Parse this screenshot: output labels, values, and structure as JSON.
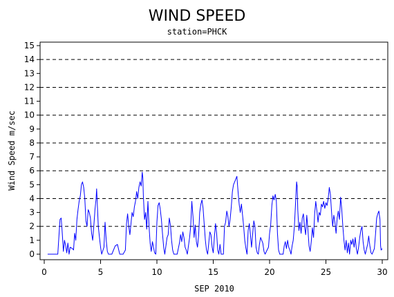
{
  "chart_data": {
    "type": "line",
    "title": "WIND SPEED",
    "subtitle": "station=PHCK",
    "xlabel": "SEP 2010",
    "ylabel": "Wind Speed m/sec",
    "xlim": [
      0,
      30.2
    ],
    "ylim": [
      0,
      15.5
    ],
    "x_ticks": [
      0,
      5,
      10,
      15,
      20,
      25,
      30
    ],
    "y_ticks": [
      0,
      1,
      2,
      3,
      4,
      5,
      6,
      7,
      8,
      9,
      10,
      11,
      12,
      13,
      14,
      15
    ],
    "reference_lines": [
      2,
      4,
      6,
      8,
      10,
      12,
      14
    ],
    "grid": false,
    "series": [
      {
        "color": "#0000ff",
        "points": [
          [
            0.3,
            0
          ],
          [
            0.8,
            0
          ],
          [
            1.2,
            0
          ],
          [
            1.4,
            2.5
          ],
          [
            1.5,
            2.6
          ],
          [
            1.6,
            1.5
          ],
          [
            1.7,
            0.2
          ],
          [
            1.8,
            1.0
          ],
          [
            1.9,
            0.6
          ],
          [
            2.0,
            0.1
          ],
          [
            2.1,
            0.8
          ],
          [
            2.2,
            0
          ],
          [
            2.3,
            0.5
          ],
          [
            2.5,
            0.4
          ],
          [
            2.6,
            0.3
          ],
          [
            2.7,
            1.5
          ],
          [
            2.8,
            1.0
          ],
          [
            2.9,
            2.5
          ],
          [
            3.0,
            3.2
          ],
          [
            3.1,
            3.8
          ],
          [
            3.2,
            4.2
          ],
          [
            3.3,
            5.0
          ],
          [
            3.4,
            5.2
          ],
          [
            3.5,
            4.8
          ],
          [
            3.6,
            4.0
          ],
          [
            3.7,
            2.4
          ],
          [
            3.8,
            2.0
          ],
          [
            3.9,
            3.2
          ],
          [
            4.0,
            3.0
          ],
          [
            4.1,
            2.6
          ],
          [
            4.2,
            1.5
          ],
          [
            4.3,
            1.0
          ],
          [
            4.4,
            2.0
          ],
          [
            4.5,
            3.2
          ],
          [
            4.6,
            4.0
          ],
          [
            4.65,
            4.7
          ],
          [
            4.7,
            3.8
          ],
          [
            4.8,
            2.0
          ],
          [
            4.9,
            1.2
          ],
          [
            5.0,
            0.5
          ],
          [
            5.1,
            0
          ],
          [
            5.3,
            0.5
          ],
          [
            5.4,
            2.3
          ],
          [
            5.5,
            1.0
          ],
          [
            5.6,
            0.2
          ],
          [
            5.7,
            0
          ],
          [
            6.0,
            0
          ],
          [
            6.3,
            0.6
          ],
          [
            6.5,
            0.7
          ],
          [
            6.7,
            0
          ],
          [
            7.0,
            0
          ],
          [
            7.2,
            0.3
          ],
          [
            7.3,
            2.2
          ],
          [
            7.4,
            2.9
          ],
          [
            7.5,
            2.0
          ],
          [
            7.6,
            1.4
          ],
          [
            7.7,
            2.2
          ],
          [
            7.8,
            3.0
          ],
          [
            7.9,
            2.7
          ],
          [
            8.0,
            3.4
          ],
          [
            8.1,
            3.8
          ],
          [
            8.2,
            4.5
          ],
          [
            8.3,
            4.0
          ],
          [
            8.4,
            4.8
          ],
          [
            8.5,
            5.2
          ],
          [
            8.6,
            4.9
          ],
          [
            8.7,
            5.9
          ],
          [
            8.75,
            5.5
          ],
          [
            8.8,
            4.2
          ],
          [
            8.9,
            2.5
          ],
          [
            9.0,
            3.0
          ],
          [
            9.1,
            1.8
          ],
          [
            9.2,
            3.8
          ],
          [
            9.3,
            2.0
          ],
          [
            9.4,
            0.8
          ],
          [
            9.5,
            0.2
          ],
          [
            9.6,
            0.9
          ],
          [
            9.7,
            0.5
          ],
          [
            9.8,
            0.1
          ],
          [
            9.9,
            0
          ],
          [
            10.0,
            2.3
          ],
          [
            10.1,
            3.5
          ],
          [
            10.2,
            3.7
          ],
          [
            10.3,
            3.2
          ],
          [
            10.4,
            2.5
          ],
          [
            10.5,
            1.4
          ],
          [
            10.6,
            0.5
          ],
          [
            10.7,
            0
          ],
          [
            10.9,
            1.2
          ],
          [
            11.0,
            1.4
          ],
          [
            11.1,
            2.6
          ],
          [
            11.2,
            2.1
          ],
          [
            11.3,
            1.0
          ],
          [
            11.4,
            0.3
          ],
          [
            11.5,
            0
          ],
          [
            11.8,
            0
          ],
          [
            12.0,
            0.8
          ],
          [
            12.1,
            1.4
          ],
          [
            12.2,
            0.9
          ],
          [
            12.3,
            1.6
          ],
          [
            12.4,
            1.2
          ],
          [
            12.5,
            0.5
          ],
          [
            12.6,
            0.3
          ],
          [
            12.7,
            0
          ],
          [
            12.9,
            1.2
          ],
          [
            13.0,
            2.0
          ],
          [
            13.1,
            3.8
          ],
          [
            13.2,
            2.7
          ],
          [
            13.3,
            1.2
          ],
          [
            13.4,
            2.1
          ],
          [
            13.5,
            0.9
          ],
          [
            13.6,
            0.5
          ],
          [
            13.7,
            1.3
          ],
          [
            13.8,
            3.0
          ],
          [
            13.9,
            3.6
          ],
          [
            14.0,
            3.9
          ],
          [
            14.1,
            3.3
          ],
          [
            14.2,
            2.1
          ],
          [
            14.3,
            1.0
          ],
          [
            14.4,
            0.3
          ],
          [
            14.5,
            0
          ],
          [
            14.7,
            1.6
          ],
          [
            14.8,
            1.4
          ],
          [
            14.9,
            0.5
          ],
          [
            15.0,
            0.1
          ],
          [
            15.1,
            1.2
          ],
          [
            15.2,
            2.2
          ],
          [
            15.3,
            1.5
          ],
          [
            15.4,
            0.3
          ],
          [
            15.5,
            0
          ],
          [
            15.6,
            0.7
          ],
          [
            15.7,
            0
          ],
          [
            15.9,
            0
          ],
          [
            16.0,
            2.0
          ],
          [
            16.1,
            2.3
          ],
          [
            16.2,
            3.1
          ],
          [
            16.3,
            2.7
          ],
          [
            16.4,
            2.0
          ],
          [
            16.5,
            2.5
          ],
          [
            16.6,
            3.4
          ],
          [
            16.7,
            4.5
          ],
          [
            16.8,
            5.0
          ],
          [
            16.9,
            5.2
          ],
          [
            17.0,
            5.4
          ],
          [
            17.1,
            5.6
          ],
          [
            17.2,
            4.5
          ],
          [
            17.3,
            3.6
          ],
          [
            17.4,
            3.0
          ],
          [
            17.5,
            3.6
          ],
          [
            17.6,
            2.8
          ],
          [
            17.7,
            2.0
          ],
          [
            17.8,
            1.0
          ],
          [
            17.9,
            0.4
          ],
          [
            18.0,
            0
          ],
          [
            18.1,
            1.7
          ],
          [
            18.2,
            2.2
          ],
          [
            18.3,
            1.4
          ],
          [
            18.4,
            0.5
          ],
          [
            18.5,
            1.5
          ],
          [
            18.6,
            2.4
          ],
          [
            18.7,
            2.0
          ],
          [
            18.8,
            0.5
          ],
          [
            18.9,
            0.1
          ],
          [
            19.0,
            0
          ],
          [
            19.1,
            0.7
          ],
          [
            19.2,
            1.2
          ],
          [
            19.4,
            0.8
          ],
          [
            19.5,
            0.2
          ],
          [
            19.6,
            0
          ],
          [
            19.9,
            0.5
          ],
          [
            20.0,
            1.5
          ],
          [
            20.1,
            2.1
          ],
          [
            20.2,
            3.5
          ],
          [
            20.3,
            4.2
          ],
          [
            20.4,
            3.9
          ],
          [
            20.5,
            4.3
          ],
          [
            20.6,
            3.8
          ],
          [
            20.7,
            1.5
          ],
          [
            20.8,
            0.3
          ],
          [
            20.9,
            0
          ],
          [
            21.2,
            0
          ],
          [
            21.3,
            0.6
          ],
          [
            21.4,
            0.9
          ],
          [
            21.5,
            0.4
          ],
          [
            21.6,
            1.0
          ],
          [
            21.7,
            0.5
          ],
          [
            21.8,
            0.3
          ],
          [
            21.9,
            0
          ],
          [
            22.0,
            0.6
          ],
          [
            22.1,
            1.0
          ],
          [
            22.2,
            2.0
          ],
          [
            22.3,
            3.6
          ],
          [
            22.4,
            5.2
          ],
          [
            22.45,
            4.9
          ],
          [
            22.5,
            3.2
          ],
          [
            22.6,
            1.7
          ],
          [
            22.7,
            2.3
          ],
          [
            22.8,
            1.5
          ],
          [
            22.9,
            2.6
          ],
          [
            23.0,
            2.9
          ],
          [
            23.1,
            2.0
          ],
          [
            23.2,
            1.4
          ],
          [
            23.3,
            2.8
          ],
          [
            23.4,
            1.8
          ],
          [
            23.5,
            0.6
          ],
          [
            23.6,
            0.2
          ],
          [
            23.7,
            0.9
          ],
          [
            23.8,
            1.9
          ],
          [
            23.9,
            1.2
          ],
          [
            24.0,
            2.9
          ],
          [
            24.1,
            3.8
          ],
          [
            24.2,
            3.1
          ],
          [
            24.3,
            2.3
          ],
          [
            24.4,
            3.0
          ],
          [
            24.5,
            2.8
          ],
          [
            24.6,
            3.6
          ],
          [
            24.7,
            3.4
          ],
          [
            24.8,
            3.8
          ],
          [
            24.9,
            3.3
          ],
          [
            25.0,
            3.7
          ],
          [
            25.1,
            3.5
          ],
          [
            25.2,
            4.0
          ],
          [
            25.3,
            4.8
          ],
          [
            25.4,
            4.3
          ],
          [
            25.5,
            3.0
          ],
          [
            25.6,
            2.0
          ],
          [
            25.7,
            2.8
          ],
          [
            25.8,
            2.3
          ],
          [
            25.9,
            1.5
          ],
          [
            26.0,
            2.6
          ],
          [
            26.1,
            3.1
          ],
          [
            26.2,
            2.5
          ],
          [
            26.3,
            4.1
          ],
          [
            26.4,
            3.3
          ],
          [
            26.5,
            2.0
          ],
          [
            26.6,
            1.0
          ],
          [
            26.7,
            0.3
          ],
          [
            26.8,
            1.0
          ],
          [
            26.9,
            0.1
          ],
          [
            27.0,
            0.8
          ],
          [
            27.1,
            0
          ],
          [
            27.2,
            1.0
          ],
          [
            27.3,
            0.7
          ],
          [
            27.4,
            1.1
          ],
          [
            27.5,
            0.5
          ],
          [
            27.6,
            1.2
          ],
          [
            27.7,
            0.4
          ],
          [
            27.8,
            0
          ],
          [
            27.9,
            0.5
          ],
          [
            28.0,
            1.2
          ],
          [
            28.1,
            1.7
          ],
          [
            28.2,
            2.0
          ],
          [
            28.3,
            0.9
          ],
          [
            28.4,
            0.3
          ],
          [
            28.5,
            0
          ],
          [
            28.7,
            0.7
          ],
          [
            28.8,
            1.3
          ],
          [
            28.9,
            0.6
          ],
          [
            29.0,
            0.1
          ],
          [
            29.1,
            0
          ],
          [
            29.3,
            0.4
          ],
          [
            29.4,
            1.4
          ],
          [
            29.5,
            2.6
          ],
          [
            29.6,
            2.9
          ],
          [
            29.7,
            3.1
          ],
          [
            29.8,
            2.5
          ],
          [
            29.85,
            0.6
          ],
          [
            29.9,
            0.3
          ],
          [
            30.0,
            0.4
          ]
        ]
      }
    ]
  }
}
